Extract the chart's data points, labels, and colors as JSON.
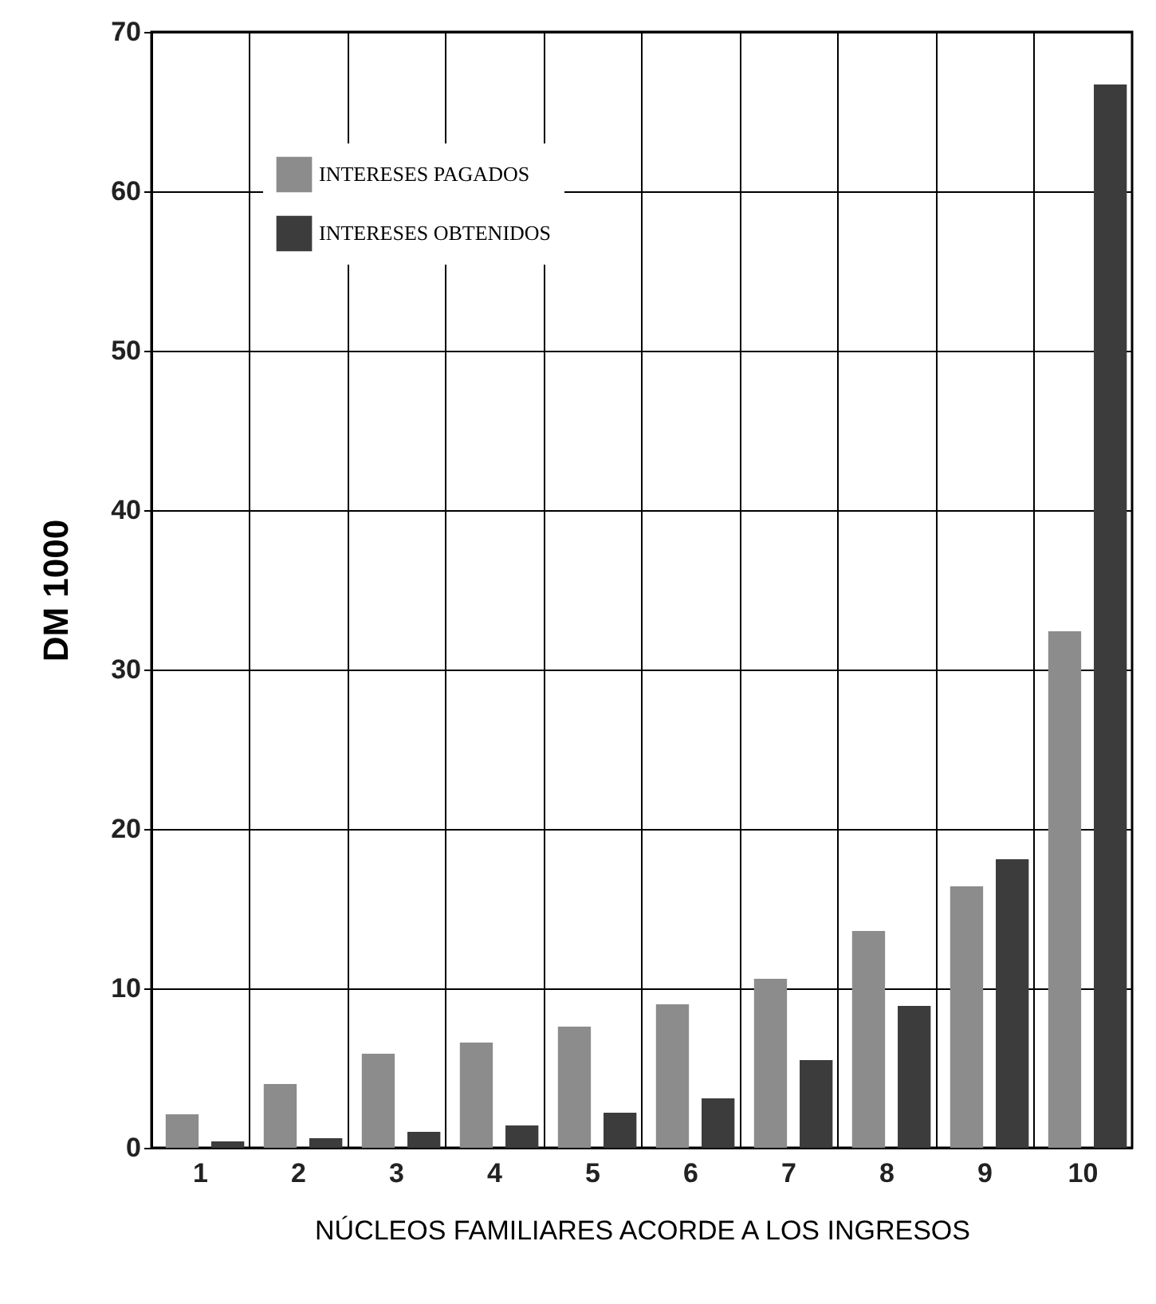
{
  "chart_data": {
    "type": "bar",
    "xlabel": "NÚCLEOS FAMILIARES ACORDE A LOS INGRESOS",
    "ylabel": "DM 1000",
    "categories": [
      "1",
      "2",
      "3",
      "4",
      "5",
      "6",
      "7",
      "8",
      "9",
      "10"
    ],
    "series": [
      {
        "name": "INTERESES PAGADOS",
        "color": "#8c8c8c",
        "values": [
          2.1,
          4.0,
          5.9,
          6.6,
          7.6,
          9.0,
          10.6,
          13.6,
          16.4,
          32.4
        ]
      },
      {
        "name": "INTERESES OBTENIDOS",
        "color": "#3c3c3c",
        "values": [
          0.4,
          0.6,
          1.0,
          1.4,
          2.2,
          3.1,
          5.5,
          8.9,
          18.1,
          66.7
        ]
      }
    ],
    "ylim": [
      0,
      70
    ],
    "yticks": [
      0,
      10,
      20,
      30,
      40,
      50,
      60,
      70
    ],
    "grid": true,
    "legend": "top left"
  }
}
